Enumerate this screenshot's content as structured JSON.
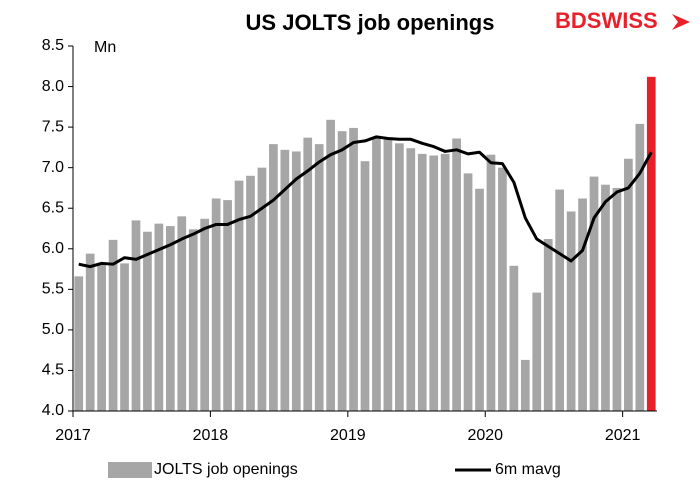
{
  "chart_data": {
    "type": "bar",
    "title": "US JOLTS job openings",
    "logo": "BDSWISS",
    "y_unit": "Mn",
    "categories": [
      "2017",
      null,
      null,
      null,
      null,
      null,
      null,
      null,
      null,
      null,
      null,
      null,
      "2018",
      null,
      null,
      null,
      null,
      null,
      null,
      null,
      null,
      null,
      null,
      null,
      "2019",
      null,
      null,
      null,
      null,
      null,
      null,
      null,
      null,
      null,
      null,
      null,
      "2020",
      null,
      null,
      null,
      null,
      null,
      null,
      null,
      null,
      null,
      null,
      null,
      "2021",
      null,
      null
    ],
    "series": [
      {
        "name": "JOLTS job openings",
        "type": "bar",
        "color": "#a6a6a6",
        "values": [
          5.66,
          5.94,
          5.82,
          6.11,
          5.82,
          6.35,
          6.21,
          6.31,
          6.28,
          6.4,
          6.24,
          6.37,
          6.62,
          6.6,
          6.84,
          6.9,
          7.0,
          7.29,
          7.22,
          7.2,
          7.37,
          7.29,
          7.59,
          7.45,
          7.49,
          7.08,
          7.38,
          7.37,
          7.3,
          7.24,
          7.17,
          7.15,
          7.17,
          7.36,
          6.93,
          6.74,
          7.16,
          7.0,
          5.79,
          4.63,
          5.46,
          6.12,
          6.73,
          6.46,
          6.62,
          6.89,
          6.79,
          6.75,
          7.11,
          7.54,
          8.12
        ],
        "colors": [
          "#a6a6a6",
          "#a6a6a6",
          "#a6a6a6",
          "#a6a6a6",
          "#a6a6a6",
          "#a6a6a6",
          "#a6a6a6",
          "#a6a6a6",
          "#a6a6a6",
          "#a6a6a6",
          "#a6a6a6",
          "#a6a6a6",
          "#a6a6a6",
          "#a6a6a6",
          "#a6a6a6",
          "#a6a6a6",
          "#a6a6a6",
          "#a6a6a6",
          "#a6a6a6",
          "#a6a6a6",
          "#a6a6a6",
          "#a6a6a6",
          "#a6a6a6",
          "#a6a6a6",
          "#a6a6a6",
          "#a6a6a6",
          "#a6a6a6",
          "#a6a6a6",
          "#a6a6a6",
          "#a6a6a6",
          "#a6a6a6",
          "#a6a6a6",
          "#a6a6a6",
          "#a6a6a6",
          "#a6a6a6",
          "#a6a6a6",
          "#a6a6a6",
          "#a6a6a6",
          "#a6a6a6",
          "#a6a6a6",
          "#a6a6a6",
          "#a6a6a6",
          "#a6a6a6",
          "#a6a6a6",
          "#a6a6a6",
          "#a6a6a6",
          "#a6a6a6",
          "#a6a6a6",
          "#a6a6a6",
          "#a6a6a6",
          "#e8202a"
        ]
      },
      {
        "name": "6m mavg",
        "type": "line",
        "color": "#000000",
        "values": [
          5.81,
          5.78,
          5.82,
          5.81,
          5.89,
          5.87,
          5.93,
          5.99,
          6.05,
          6.12,
          6.18,
          6.25,
          6.3,
          6.3,
          6.36,
          6.4,
          6.5,
          6.6,
          6.73,
          6.86,
          6.96,
          7.07,
          7.16,
          7.22,
          7.31,
          7.33,
          7.38,
          7.36,
          7.35,
          7.35,
          7.3,
          7.26,
          7.2,
          7.22,
          7.17,
          7.19,
          7.06,
          7.05,
          6.82,
          6.38,
          6.12,
          6.03,
          5.94,
          5.85,
          5.98,
          6.38,
          6.58,
          6.7,
          6.75,
          6.93,
          7.19
        ]
      }
    ],
    "ylim": [
      4.0,
      8.5
    ],
    "yticks": [
      {
        "value": 4,
        "label": "4.0"
      },
      4.5,
      {
        "value": 5,
        "label": "5.0"
      },
      5.5,
      {
        "value": 6,
        "label": "6.0"
      },
      6.5,
      {
        "value": 7,
        "label": "7.0"
      },
      7.5,
      {
        "value": 8,
        "label": "8.0"
      },
      8.5
    ],
    "grid": false
  }
}
